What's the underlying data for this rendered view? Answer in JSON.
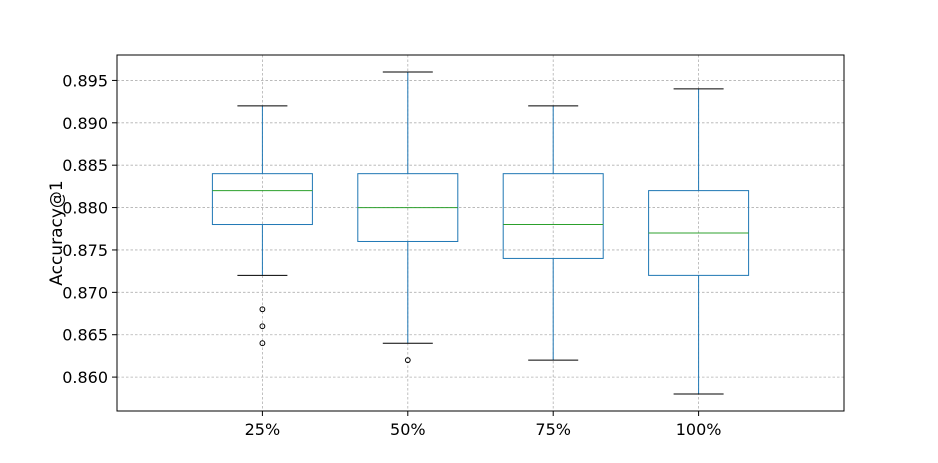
{
  "chart_data": {
    "type": "box",
    "title": "",
    "xlabel": "",
    "ylabel": "Accuracy@1",
    "categories": [
      "25%",
      "50%",
      "75%",
      "100%"
    ],
    "ylim": [
      0.856,
      0.898
    ],
    "yticks": [
      0.86,
      0.865,
      0.87,
      0.875,
      0.88,
      0.885,
      0.89,
      0.895
    ],
    "ytick_labels": [
      "0.860",
      "0.865",
      "0.870",
      "0.875",
      "0.880",
      "0.885",
      "0.890",
      "0.895"
    ],
    "grid": true,
    "boxes": [
      {
        "category": "25%",
        "whisker_low": 0.872,
        "q1": 0.878,
        "median": 0.882,
        "q3": 0.884,
        "whisker_high": 0.892,
        "outliers": [
          0.868,
          0.866,
          0.864
        ]
      },
      {
        "category": "50%",
        "whisker_low": 0.864,
        "q1": 0.876,
        "median": 0.88,
        "q3": 0.884,
        "whisker_high": 0.896,
        "outliers": [
          0.862
        ]
      },
      {
        "category": "75%",
        "whisker_low": 0.862,
        "q1": 0.874,
        "median": 0.878,
        "q3": 0.884,
        "whisker_high": 0.892,
        "outliers": []
      },
      {
        "category": "100%",
        "whisker_low": 0.858,
        "q1": 0.872,
        "median": 0.877,
        "q3": 0.882,
        "whisker_high": 0.894,
        "outliers": []
      }
    ],
    "colors": {
      "box": "#1f77b4",
      "median": "#2ca02c",
      "cap": "#000000",
      "outlier": "#000000",
      "grid": "#b0b0b0"
    }
  }
}
